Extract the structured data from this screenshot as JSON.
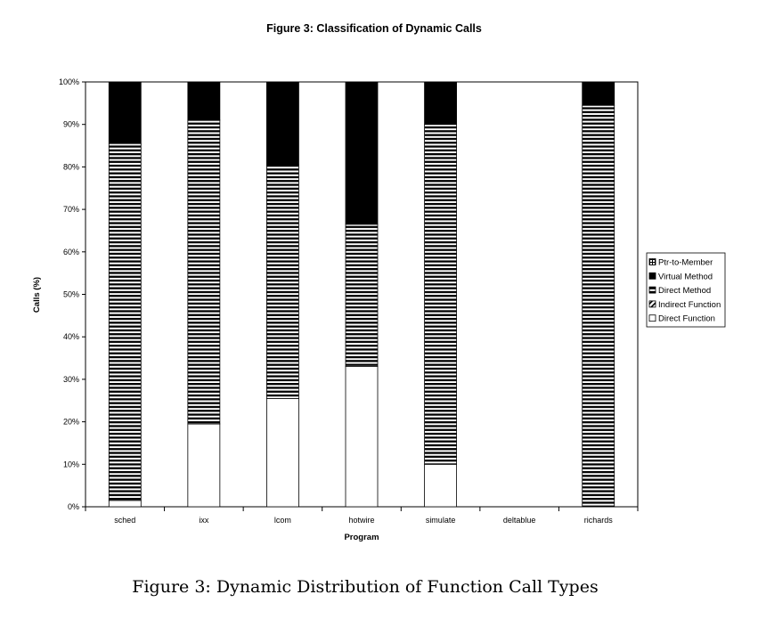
{
  "caption": "Figure 3: Dynamic Distribution of Function Call Types",
  "chart_data": {
    "type": "bar",
    "stacked": true,
    "title": "Figure 3: Classification of Dynamic Calls",
    "xlabel": "Program",
    "ylabel": "Calls (%)",
    "ylim": [
      0,
      100
    ],
    "yticks": [
      "0%",
      "10%",
      "20%",
      "30%",
      "40%",
      "50%",
      "60%",
      "70%",
      "80%",
      "90%",
      "100%"
    ],
    "categories": [
      "sched",
      "ixx",
      "lcom",
      "hotwire",
      "simulate",
      "deltablue",
      "richards"
    ],
    "legend_position": "right",
    "series": [
      {
        "name": "Direct Function",
        "pattern": "white",
        "values": [
          1.5,
          19.5,
          25.5,
          33.0,
          10.0,
          0,
          0
        ]
      },
      {
        "name": "Indirect Function",
        "pattern": "hatched",
        "values": [
          0,
          0,
          0,
          0,
          0,
          0,
          0
        ]
      },
      {
        "name": "Direct Method",
        "pattern": "horizontal",
        "values": [
          84.0,
          71.5,
          55.0,
          33.5,
          80.0,
          0,
          94.5
        ]
      },
      {
        "name": "Virtual Method",
        "pattern": "black",
        "values": [
          14.5,
          9.0,
          19.5,
          33.5,
          10.0,
          0,
          5.5
        ]
      },
      {
        "name": "Ptr-to-Member",
        "pattern": "grid",
        "values": [
          0,
          0,
          0,
          0,
          0,
          0,
          0
        ]
      }
    ],
    "legend_order": [
      "Ptr-to-Member",
      "Virtual Method",
      "Direct Method",
      "Indirect Function",
      "Direct Function"
    ],
    "grid": false
  }
}
